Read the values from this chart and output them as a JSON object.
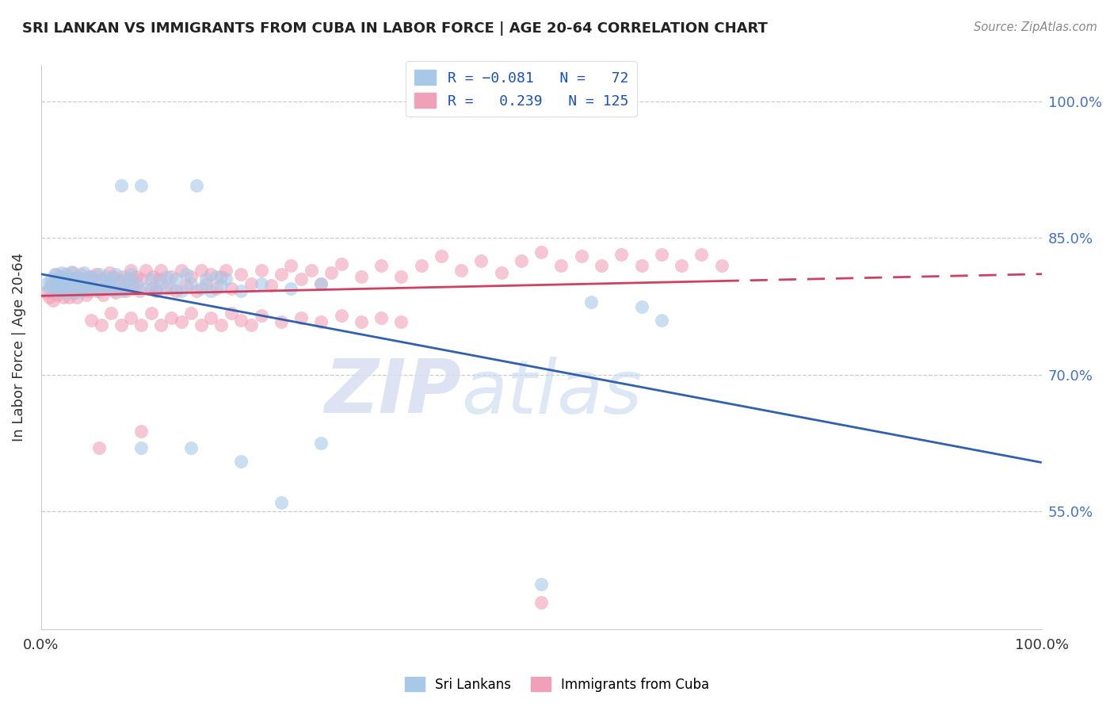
{
  "title": "SRI LANKAN VS IMMIGRANTS FROM CUBA IN LABOR FORCE | AGE 20-64 CORRELATION CHART",
  "source": "Source: ZipAtlas.com",
  "ylabel": "In Labor Force | Age 20-64",
  "yticks": [
    "55.0%",
    "70.0%",
    "85.0%",
    "100.0%"
  ],
  "ytick_values": [
    0.55,
    0.7,
    0.85,
    1.0
  ],
  "xlim": [
    0.0,
    1.0
  ],
  "ylim": [
    0.42,
    1.04
  ],
  "blue_color": "#a8c8e8",
  "pink_color": "#f0a0b8",
  "blue_line_color": "#3060b0",
  "pink_line_color": "#d04060",
  "sri_lankan_points": [
    [
      0.005,
      0.8
    ],
    [
      0.008,
      0.795
    ],
    [
      0.01,
      0.805
    ],
    [
      0.012,
      0.798
    ],
    [
      0.014,
      0.81
    ],
    [
      0.015,
      0.792
    ],
    [
      0.016,
      0.803
    ],
    [
      0.018,
      0.808
    ],
    [
      0.02,
      0.795
    ],
    [
      0.021,
      0.812
    ],
    [
      0.022,
      0.8
    ],
    [
      0.023,
      0.805
    ],
    [
      0.025,
      0.79
    ],
    [
      0.026,
      0.808
    ],
    [
      0.027,
      0.795
    ],
    [
      0.028,
      0.802
    ],
    [
      0.03,
      0.813
    ],
    [
      0.032,
      0.798
    ],
    [
      0.033,
      0.805
    ],
    [
      0.035,
      0.79
    ],
    [
      0.036,
      0.808
    ],
    [
      0.038,
      0.795
    ],
    [
      0.04,
      0.805
    ],
    [
      0.042,
      0.792
    ],
    [
      0.043,
      0.812
    ],
    [
      0.045,
      0.8
    ],
    [
      0.046,
      0.795
    ],
    [
      0.048,
      0.808
    ],
    [
      0.05,
      0.798
    ],
    [
      0.052,
      0.805
    ],
    [
      0.055,
      0.792
    ],
    [
      0.058,
      0.81
    ],
    [
      0.06,
      0.8
    ],
    [
      0.062,
      0.795
    ],
    [
      0.065,
      0.808
    ],
    [
      0.068,
      0.798
    ],
    [
      0.07,
      0.805
    ],
    [
      0.072,
      0.792
    ],
    [
      0.075,
      0.81
    ],
    [
      0.078,
      0.8
    ],
    [
      0.08,
      0.908
    ],
    [
      0.082,
      0.792
    ],
    [
      0.085,
      0.805
    ],
    [
      0.088,
      0.798
    ],
    [
      0.09,
      0.81
    ],
    [
      0.095,
      0.8
    ],
    [
      0.1,
      0.908
    ],
    [
      0.105,
      0.795
    ],
    [
      0.11,
      0.805
    ],
    [
      0.115,
      0.792
    ],
    [
      0.12,
      0.8
    ],
    [
      0.125,
      0.808
    ],
    [
      0.13,
      0.795
    ],
    [
      0.135,
      0.805
    ],
    [
      0.14,
      0.792
    ],
    [
      0.145,
      0.81
    ],
    [
      0.15,
      0.8
    ],
    [
      0.155,
      0.908
    ],
    [
      0.16,
      0.795
    ],
    [
      0.165,
      0.805
    ],
    [
      0.17,
      0.792
    ],
    [
      0.175,
      0.808
    ],
    [
      0.18,
      0.798
    ],
    [
      0.185,
      0.805
    ],
    [
      0.2,
      0.792
    ],
    [
      0.22,
      0.8
    ],
    [
      0.25,
      0.795
    ],
    [
      0.28,
      0.8
    ],
    [
      0.1,
      0.62
    ],
    [
      0.15,
      0.62
    ],
    [
      0.2,
      0.605
    ],
    [
      0.24,
      0.56
    ],
    [
      0.28,
      0.625
    ],
    [
      0.5,
      0.47
    ],
    [
      0.55,
      0.78
    ],
    [
      0.6,
      0.775
    ],
    [
      0.62,
      0.76
    ]
  ],
  "cuba_points": [
    [
      0.005,
      0.79
    ],
    [
      0.008,
      0.785
    ],
    [
      0.01,
      0.8
    ],
    [
      0.012,
      0.782
    ],
    [
      0.014,
      0.795
    ],
    [
      0.015,
      0.81
    ],
    [
      0.016,
      0.788
    ],
    [
      0.018,
      0.8
    ],
    [
      0.02,
      0.792
    ],
    [
      0.021,
      0.808
    ],
    [
      0.022,
      0.785
    ],
    [
      0.023,
      0.798
    ],
    [
      0.025,
      0.81
    ],
    [
      0.026,
      0.792
    ],
    [
      0.027,
      0.802
    ],
    [
      0.028,
      0.785
    ],
    [
      0.03,
      0.798
    ],
    [
      0.032,
      0.812
    ],
    [
      0.033,
      0.79
    ],
    [
      0.035,
      0.803
    ],
    [
      0.036,
      0.785
    ],
    [
      0.038,
      0.798
    ],
    [
      0.04,
      0.81
    ],
    [
      0.042,
      0.792
    ],
    [
      0.043,
      0.805
    ],
    [
      0.045,
      0.788
    ],
    [
      0.046,
      0.8
    ],
    [
      0.048,
      0.792
    ],
    [
      0.05,
      0.808
    ],
    [
      0.052,
      0.795
    ],
    [
      0.055,
      0.81
    ],
    [
      0.058,
      0.792
    ],
    [
      0.06,
      0.805
    ],
    [
      0.062,
      0.788
    ],
    [
      0.065,
      0.8
    ],
    [
      0.068,
      0.812
    ],
    [
      0.07,
      0.795
    ],
    [
      0.072,
      0.808
    ],
    [
      0.075,
      0.79
    ],
    [
      0.078,
      0.803
    ],
    [
      0.08,
      0.795
    ],
    [
      0.082,
      0.808
    ],
    [
      0.085,
      0.792
    ],
    [
      0.088,
      0.805
    ],
    [
      0.09,
      0.815
    ],
    [
      0.092,
      0.795
    ],
    [
      0.095,
      0.808
    ],
    [
      0.098,
      0.792
    ],
    [
      0.1,
      0.805
    ],
    [
      0.105,
      0.815
    ],
    [
      0.11,
      0.795
    ],
    [
      0.112,
      0.808
    ],
    [
      0.115,
      0.792
    ],
    [
      0.118,
      0.805
    ],
    [
      0.12,
      0.815
    ],
    [
      0.125,
      0.795
    ],
    [
      0.13,
      0.808
    ],
    [
      0.135,
      0.792
    ],
    [
      0.14,
      0.815
    ],
    [
      0.145,
      0.798
    ],
    [
      0.15,
      0.808
    ],
    [
      0.155,
      0.792
    ],
    [
      0.16,
      0.815
    ],
    [
      0.165,
      0.8
    ],
    [
      0.17,
      0.81
    ],
    [
      0.175,
      0.795
    ],
    [
      0.18,
      0.808
    ],
    [
      0.185,
      0.815
    ],
    [
      0.19,
      0.795
    ],
    [
      0.2,
      0.81
    ],
    [
      0.21,
      0.8
    ],
    [
      0.22,
      0.815
    ],
    [
      0.23,
      0.798
    ],
    [
      0.24,
      0.81
    ],
    [
      0.25,
      0.82
    ],
    [
      0.26,
      0.805
    ],
    [
      0.27,
      0.815
    ],
    [
      0.28,
      0.8
    ],
    [
      0.29,
      0.812
    ],
    [
      0.3,
      0.822
    ],
    [
      0.32,
      0.808
    ],
    [
      0.34,
      0.82
    ],
    [
      0.36,
      0.808
    ],
    [
      0.38,
      0.82
    ],
    [
      0.4,
      0.83
    ],
    [
      0.42,
      0.815
    ],
    [
      0.44,
      0.825
    ],
    [
      0.46,
      0.812
    ],
    [
      0.48,
      0.825
    ],
    [
      0.5,
      0.835
    ],
    [
      0.52,
      0.82
    ],
    [
      0.54,
      0.83
    ],
    [
      0.56,
      0.82
    ],
    [
      0.58,
      0.832
    ],
    [
      0.6,
      0.82
    ],
    [
      0.62,
      0.832
    ],
    [
      0.64,
      0.82
    ],
    [
      0.66,
      0.832
    ],
    [
      0.68,
      0.82
    ],
    [
      0.05,
      0.76
    ],
    [
      0.06,
      0.755
    ],
    [
      0.07,
      0.768
    ],
    [
      0.08,
      0.755
    ],
    [
      0.09,
      0.762
    ],
    [
      0.1,
      0.755
    ],
    [
      0.11,
      0.768
    ],
    [
      0.12,
      0.755
    ],
    [
      0.13,
      0.762
    ],
    [
      0.14,
      0.758
    ],
    [
      0.15,
      0.768
    ],
    [
      0.16,
      0.755
    ],
    [
      0.17,
      0.762
    ],
    [
      0.18,
      0.755
    ],
    [
      0.19,
      0.768
    ],
    [
      0.2,
      0.76
    ],
    [
      0.21,
      0.755
    ],
    [
      0.22,
      0.765
    ],
    [
      0.24,
      0.758
    ],
    [
      0.26,
      0.762
    ],
    [
      0.28,
      0.758
    ],
    [
      0.3,
      0.765
    ],
    [
      0.32,
      0.758
    ],
    [
      0.34,
      0.762
    ],
    [
      0.36,
      0.758
    ],
    [
      0.058,
      0.62
    ],
    [
      0.1,
      0.638
    ],
    [
      0.5,
      0.45
    ]
  ]
}
